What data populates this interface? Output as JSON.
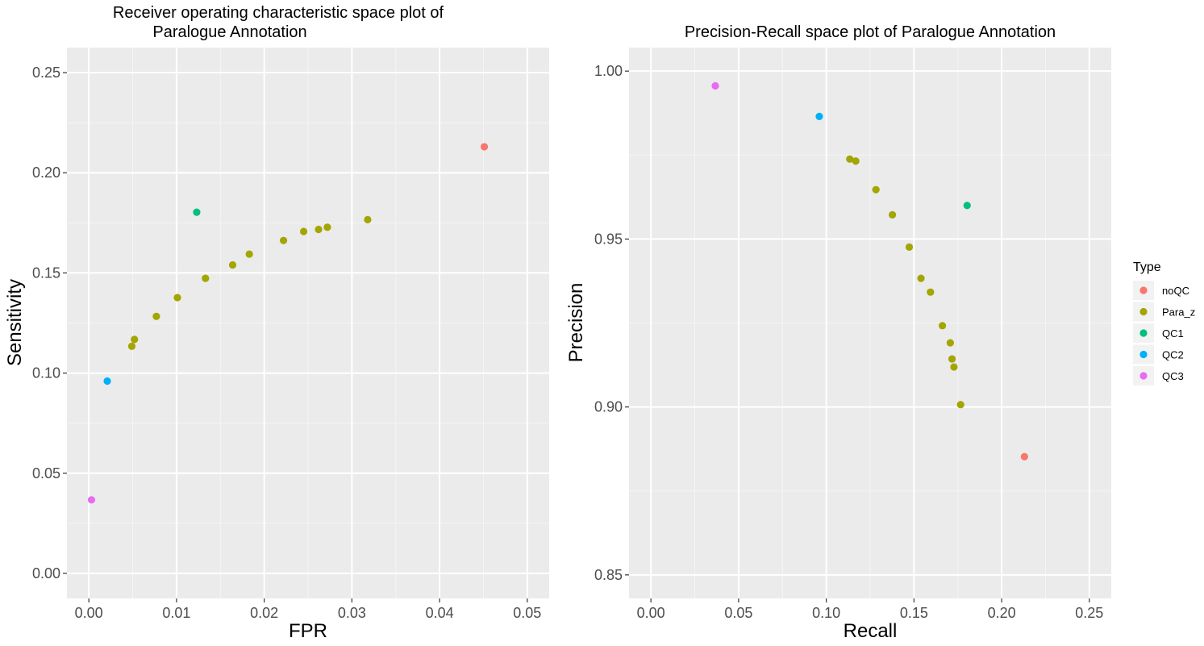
{
  "legend": {
    "title": "Type",
    "position": "right",
    "items": [
      {
        "label": "noQC",
        "color": "#F8766D"
      },
      {
        "label": "Para_z",
        "color": "#A3A500"
      },
      {
        "label": "QC1",
        "color": "#00BF7D"
      },
      {
        "label": "QC2",
        "color": "#00B0F6"
      },
      {
        "label": "QC3",
        "color": "#E76BF3"
      }
    ]
  },
  "chart_data": [
    {
      "type": "scatter",
      "title": "Receiver operating characteristic space plot of\n        Paralogue Annotation",
      "xlabel": "FPR",
      "ylabel": "Sensitivity",
      "xlim": [
        -0.0025,
        0.0525
      ],
      "ylim": [
        -0.0125,
        0.2625
      ],
      "xticks": [
        0.0,
        0.01,
        0.02,
        0.03,
        0.04,
        0.05
      ],
      "xtick_labels": [
        "0.00",
        "0.01",
        "0.02",
        "0.03",
        "0.04",
        "0.05"
      ],
      "yticks": [
        0.0,
        0.05,
        0.1,
        0.15,
        0.2,
        0.25
      ],
      "ytick_labels": [
        "0.00",
        "0.05",
        "0.10",
        "0.15",
        "0.20",
        "0.25"
      ],
      "grid": true,
      "points": [
        {
          "x": 0.0451,
          "y": 0.213,
          "type": "noQC"
        },
        {
          "x": 0.0049,
          "y": 0.1134,
          "type": "Para_z"
        },
        {
          "x": 0.0052,
          "y": 0.1168,
          "type": "Para_z"
        },
        {
          "x": 0.0077,
          "y": 0.1283,
          "type": "Para_z"
        },
        {
          "x": 0.0101,
          "y": 0.1377,
          "type": "Para_z"
        },
        {
          "x": 0.0133,
          "y": 0.1473,
          "type": "Para_z"
        },
        {
          "x": 0.0164,
          "y": 0.154,
          "type": "Para_z"
        },
        {
          "x": 0.0183,
          "y": 0.1594,
          "type": "Para_z"
        },
        {
          "x": 0.0222,
          "y": 0.1662,
          "type": "Para_z"
        },
        {
          "x": 0.0245,
          "y": 0.1707,
          "type": "Para_z"
        },
        {
          "x": 0.0262,
          "y": 0.1717,
          "type": "Para_z"
        },
        {
          "x": 0.0272,
          "y": 0.1728,
          "type": "Para_z"
        },
        {
          "x": 0.0318,
          "y": 0.1766,
          "type": "Para_z"
        },
        {
          "x": 0.0123,
          "y": 0.1803,
          "type": "QC1"
        },
        {
          "x": 0.0021,
          "y": 0.096,
          "type": "QC2"
        },
        {
          "x": 0.0003,
          "y": 0.0367,
          "type": "QC3"
        }
      ]
    },
    {
      "type": "scatter",
      "title": "Precision-Recall space plot of Paralogue Annotation",
      "xlabel": "Recall",
      "ylabel": "Precision",
      "xlim": [
        -0.0125,
        0.2625
      ],
      "ylim": [
        0.843,
        1.007
      ],
      "xticks": [
        0.0,
        0.05,
        0.1,
        0.15,
        0.2,
        0.25
      ],
      "xtick_labels": [
        "0.00",
        "0.05",
        "0.10",
        "0.15",
        "0.20",
        "0.25"
      ],
      "yticks": [
        0.85,
        0.9,
        0.95,
        1.0
      ],
      "ytick_labels": [
        "0.85",
        "0.90",
        "0.95",
        "1.00"
      ],
      "grid": true,
      "points": [
        {
          "x": 0.213,
          "y": 0.8852,
          "type": "noQC"
        },
        {
          "x": 0.1134,
          "y": 0.9738,
          "type": "Para_z"
        },
        {
          "x": 0.1168,
          "y": 0.9732,
          "type": "Para_z"
        },
        {
          "x": 0.1283,
          "y": 0.9647,
          "type": "Para_z"
        },
        {
          "x": 0.1377,
          "y": 0.9572,
          "type": "Para_z"
        },
        {
          "x": 0.1473,
          "y": 0.9476,
          "type": "Para_z"
        },
        {
          "x": 0.154,
          "y": 0.9383,
          "type": "Para_z"
        },
        {
          "x": 0.1594,
          "y": 0.9342,
          "type": "Para_z"
        },
        {
          "x": 0.1662,
          "y": 0.9242,
          "type": "Para_z"
        },
        {
          "x": 0.1707,
          "y": 0.9191,
          "type": "Para_z"
        },
        {
          "x": 0.1717,
          "y": 0.9143,
          "type": "Para_z"
        },
        {
          "x": 0.1728,
          "y": 0.9119,
          "type": "Para_z"
        },
        {
          "x": 0.1766,
          "y": 0.9007,
          "type": "Para_z"
        },
        {
          "x": 0.1803,
          "y": 0.96,
          "type": "QC1"
        },
        {
          "x": 0.096,
          "y": 0.9865,
          "type": "QC2"
        },
        {
          "x": 0.0367,
          "y": 0.9956,
          "type": "QC3"
        }
      ]
    }
  ]
}
